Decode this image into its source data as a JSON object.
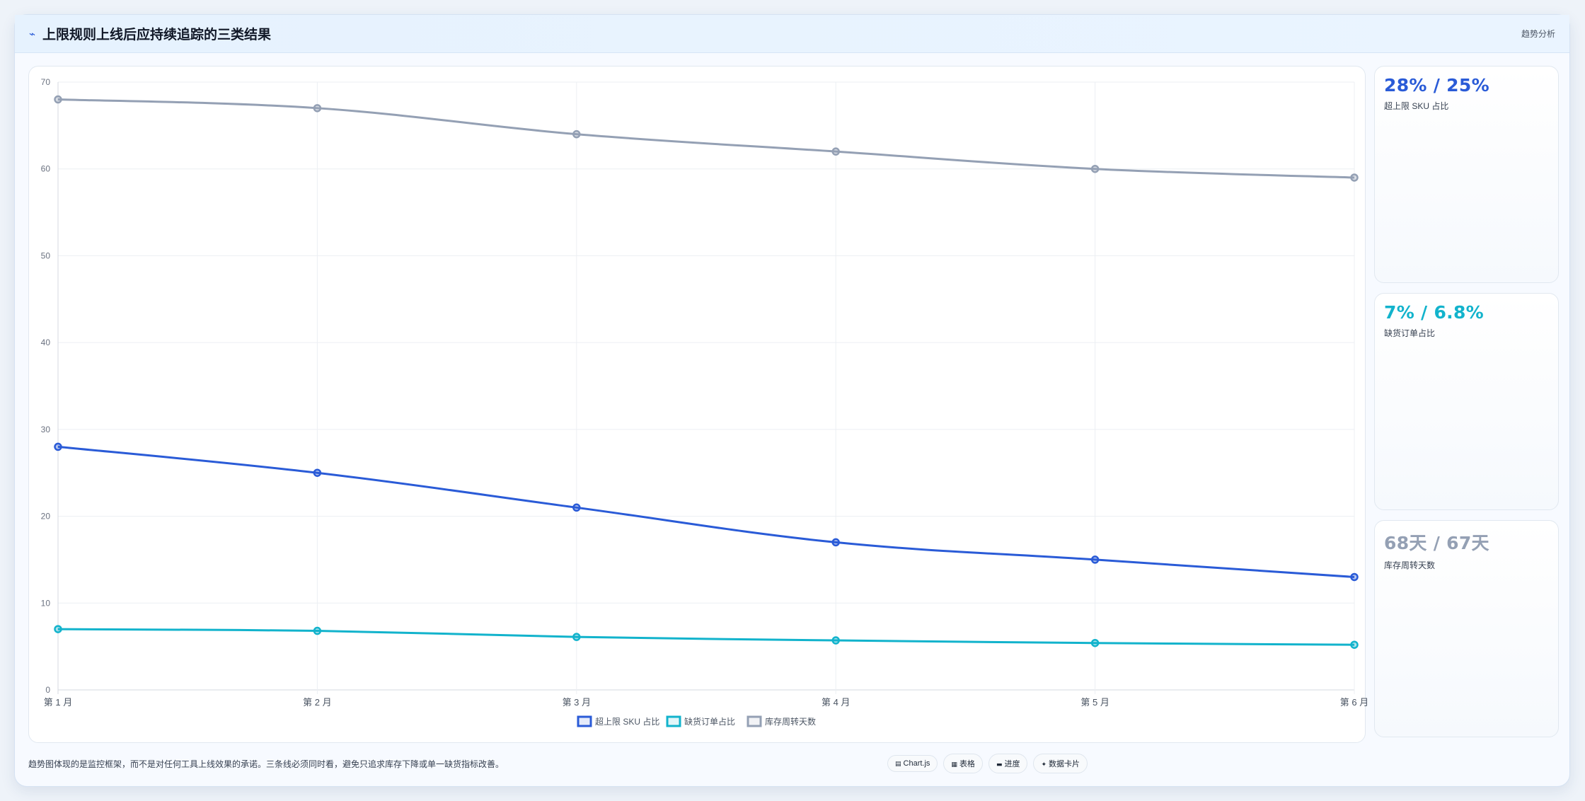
{
  "header": {
    "icon": "trend-line-icon",
    "title": "上限规则上线后应持续追踪的三类结果",
    "tag": "趋势分析"
  },
  "colors": {
    "blue": "#2a5bd7",
    "cyan": "#12b3cc",
    "gray": "#94a0b4"
  },
  "chart_data": {
    "type": "line",
    "categories": [
      "第 1 月",
      "第 2 月",
      "第 3 月",
      "第 4 月",
      "第 5 月",
      "第 6 月"
    ],
    "ylim": [
      0,
      70
    ],
    "yticks": [
      0,
      10,
      20,
      30,
      40,
      50,
      60,
      70
    ],
    "grid": true,
    "legend_position": "bottom",
    "series": [
      {
        "name": "超上限 SKU 占比",
        "color": "#2a5bd7",
        "values": [
          28,
          25,
          21,
          17,
          15,
          13
        ]
      },
      {
        "name": "缺货订单占比",
        "color": "#12b3cc",
        "values": [
          7,
          6.8,
          6.1,
          5.7,
          5.4,
          5.2
        ]
      },
      {
        "name": "库存周转天数",
        "color": "#94a0b4",
        "values": [
          68,
          67,
          64,
          62,
          60,
          59
        ]
      }
    ]
  },
  "stats": [
    {
      "value": "28% / 25%",
      "label": "超上限 SKU 占比",
      "color": "#2a5bd7"
    },
    {
      "value": "7% / 6.8%",
      "label": "缺货订单占比",
      "color": "#12b3cc"
    },
    {
      "value": "68天 / 67天",
      "label": "库存周转天数",
      "color": "#94a0b4"
    }
  ],
  "footer": {
    "note": "趋势图体现的是监控框架，而不是对任何工具上线效果的承诺。三条线必须同时看，避免只追求库存下降或单一缺货指标改善。",
    "chips": [
      {
        "icon": "chart-icon",
        "glyph": "▤",
        "label": "Chart.js"
      },
      {
        "icon": "table-icon",
        "glyph": "▦",
        "label": "表格"
      },
      {
        "icon": "progress-icon",
        "glyph": "▬",
        "label": "进度"
      },
      {
        "icon": "card-icon",
        "glyph": "✦",
        "label": "数据卡片"
      }
    ]
  }
}
